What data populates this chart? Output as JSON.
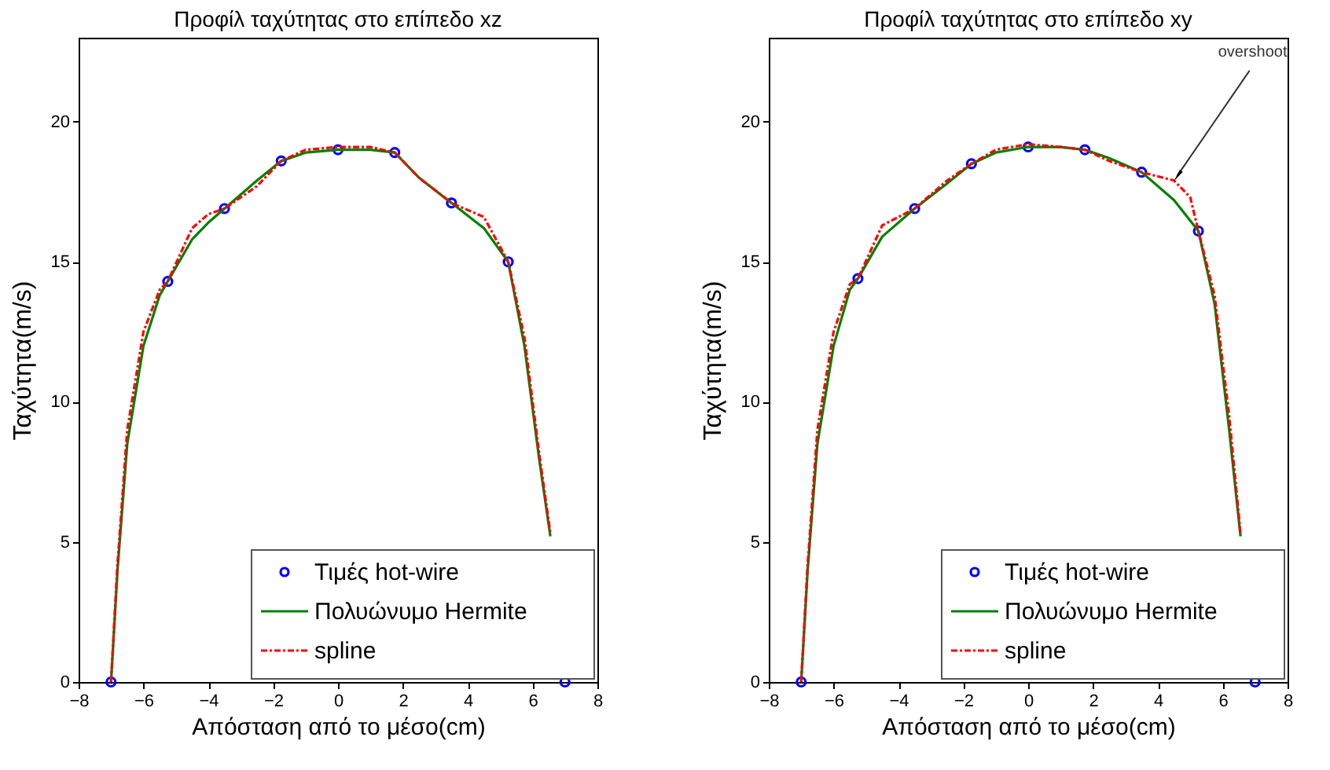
{
  "chart_data": [
    {
      "type": "line",
      "title": "Προφίλ ταχύτητας στο επίπεδο xz",
      "xlabel": "Απόσταση από το μέσο(cm)",
      "ylabel": "Ταχύτητα(m/s)",
      "xlim": [
        -8,
        8
      ],
      "ylim": [
        0,
        23
      ],
      "xticks": [
        -8,
        -6,
        -4,
        -2,
        0,
        2,
        4,
        6,
        8
      ],
      "yticks": [
        0,
        5,
        10,
        15,
        20
      ],
      "grid": false,
      "legend": "bottom right",
      "series": [
        {
          "name": "Τιμές hot-wire",
          "type": "scatter",
          "marker": "circle",
          "color": "#0000ff",
          "x": [
            -7,
            -5.25,
            -3.5,
            -1.75,
            0,
            1.75,
            3.5,
            5.25,
            7
          ],
          "values": [
            0,
            14.3,
            16.9,
            18.6,
            19.0,
            18.9,
            17.1,
            15.0,
            0
          ]
        },
        {
          "name": "Πολυώνυμο Hermite",
          "line_style": "solid",
          "color": "#008000",
          "x": [
            -7,
            -6.8,
            -6.5,
            -6,
            -5.5,
            -5.25,
            -4.5,
            -4,
            -3.5,
            -2.5,
            -1.75,
            -1,
            0,
            1,
            1.75,
            2.5,
            3.5,
            4.5,
            5.25,
            5.75,
            6.2,
            6.55
          ],
          "values": [
            0,
            4,
            8.5,
            12,
            13.8,
            14.3,
            15.8,
            16.4,
            16.9,
            17.9,
            18.6,
            18.9,
            19.0,
            19.0,
            18.9,
            18.0,
            17.1,
            16.2,
            15.0,
            12,
            8,
            5.2
          ]
        },
        {
          "name": "spline",
          "line_style": "dashed",
          "color": "#ff0000",
          "x": [
            -7,
            -6.8,
            -6.5,
            -6,
            -5.5,
            -5.25,
            -4.5,
            -4,
            -3.5,
            -2.5,
            -1.75,
            -1,
            0,
            1,
            1.75,
            2.5,
            3.5,
            4.5,
            5.25,
            5.75,
            6.2,
            6.55
          ],
          "values": [
            0,
            4.2,
            9,
            12.5,
            14.0,
            14.3,
            16.2,
            16.7,
            16.9,
            17.7,
            18.6,
            19.0,
            19.1,
            19.1,
            18.9,
            18.0,
            17.1,
            16.6,
            15.0,
            12.3,
            8.2,
            5.3
          ]
        }
      ]
    },
    {
      "type": "line",
      "title": "Προφίλ ταχύτητας στο επίπεδο xy",
      "xlabel": "Απόσταση από το μέσο(cm)",
      "ylabel": "Ταχύτητα(m/s)",
      "xlim": [
        -8,
        8
      ],
      "ylim": [
        0,
        23
      ],
      "xticks": [
        -8,
        -6,
        -4,
        -2,
        0,
        2,
        4,
        6,
        8
      ],
      "yticks": [
        0,
        5,
        10,
        15,
        20
      ],
      "grid": false,
      "legend": "bottom right",
      "annotations": [
        {
          "text": "overshoot",
          "x": 4.5,
          "y": 17.9
        }
      ],
      "series": [
        {
          "name": "Τιμές hot-wire",
          "type": "scatter",
          "marker": "circle",
          "color": "#0000ff",
          "x": [
            -7,
            -5.25,
            -3.5,
            -1.75,
            0,
            1.75,
            3.5,
            5.25,
            7
          ],
          "values": [
            0,
            14.4,
            16.9,
            18.5,
            19.1,
            19.0,
            18.2,
            16.1,
            0
          ]
        },
        {
          "name": "Πολυώνυμο Hermite",
          "line_style": "solid",
          "color": "#008000",
          "x": [
            -7,
            -6.8,
            -6.5,
            -6,
            -5.5,
            -5.25,
            -4.5,
            -3.5,
            -2.5,
            -1.75,
            -1,
            0,
            1,
            1.75,
            2.5,
            3.5,
            4.5,
            5.25,
            5.75,
            6.2,
            6.55
          ],
          "values": [
            0,
            4,
            8.5,
            12,
            14,
            14.4,
            15.9,
            16.9,
            17.8,
            18.5,
            18.9,
            19.1,
            19.1,
            19.0,
            18.7,
            18.2,
            17.2,
            16.1,
            13.5,
            9,
            5.2
          ]
        },
        {
          "name": "spline",
          "line_style": "dashed",
          "color": "#ff0000",
          "x": [
            -7,
            -6.8,
            -6.5,
            -6,
            -5.5,
            -5.25,
            -4.5,
            -3.5,
            -2.5,
            -1.75,
            -1,
            0,
            1,
            1.75,
            2.5,
            3.5,
            4.5,
            5,
            5.25,
            5.75,
            6.2,
            6.55
          ],
          "values": [
            0,
            4.2,
            9,
            12.5,
            14.2,
            14.4,
            16.3,
            16.9,
            17.9,
            18.5,
            19.0,
            19.2,
            19.1,
            19.0,
            18.6,
            18.2,
            17.9,
            17.3,
            16.1,
            13.8,
            9.5,
            5.3
          ]
        }
      ]
    }
  ]
}
